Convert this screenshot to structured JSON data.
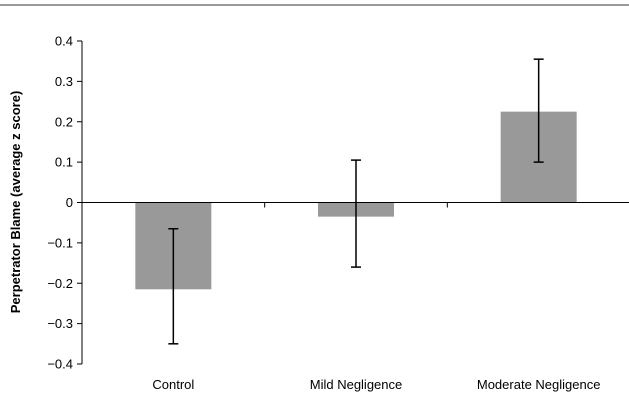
{
  "chart_data": {
    "type": "bar",
    "title": "",
    "xlabel": "",
    "ylabel": "Perpetrator Blame (average z score)",
    "categories": [
      "Control",
      "Mild Negligence",
      "Moderate Negligence"
    ],
    "values": [
      -0.215,
      -0.035,
      0.225
    ],
    "error_low": [
      -0.35,
      -0.16,
      0.1
    ],
    "error_high": [
      -0.065,
      0.105,
      0.355
    ],
    "ylim": [
      -0.4,
      0.4
    ],
    "yticks": [
      "0.4",
      "0.3",
      "0.2",
      "0.1",
      "0",
      "−0.1",
      "−0.2",
      "−0.3",
      "−0.4"
    ],
    "ytick_values": [
      0.4,
      0.3,
      0.2,
      0.1,
      0,
      -0.1,
      -0.2,
      -0.3,
      -0.4
    ],
    "bar_color": "#999999",
    "grid": false,
    "legend": "none"
  }
}
